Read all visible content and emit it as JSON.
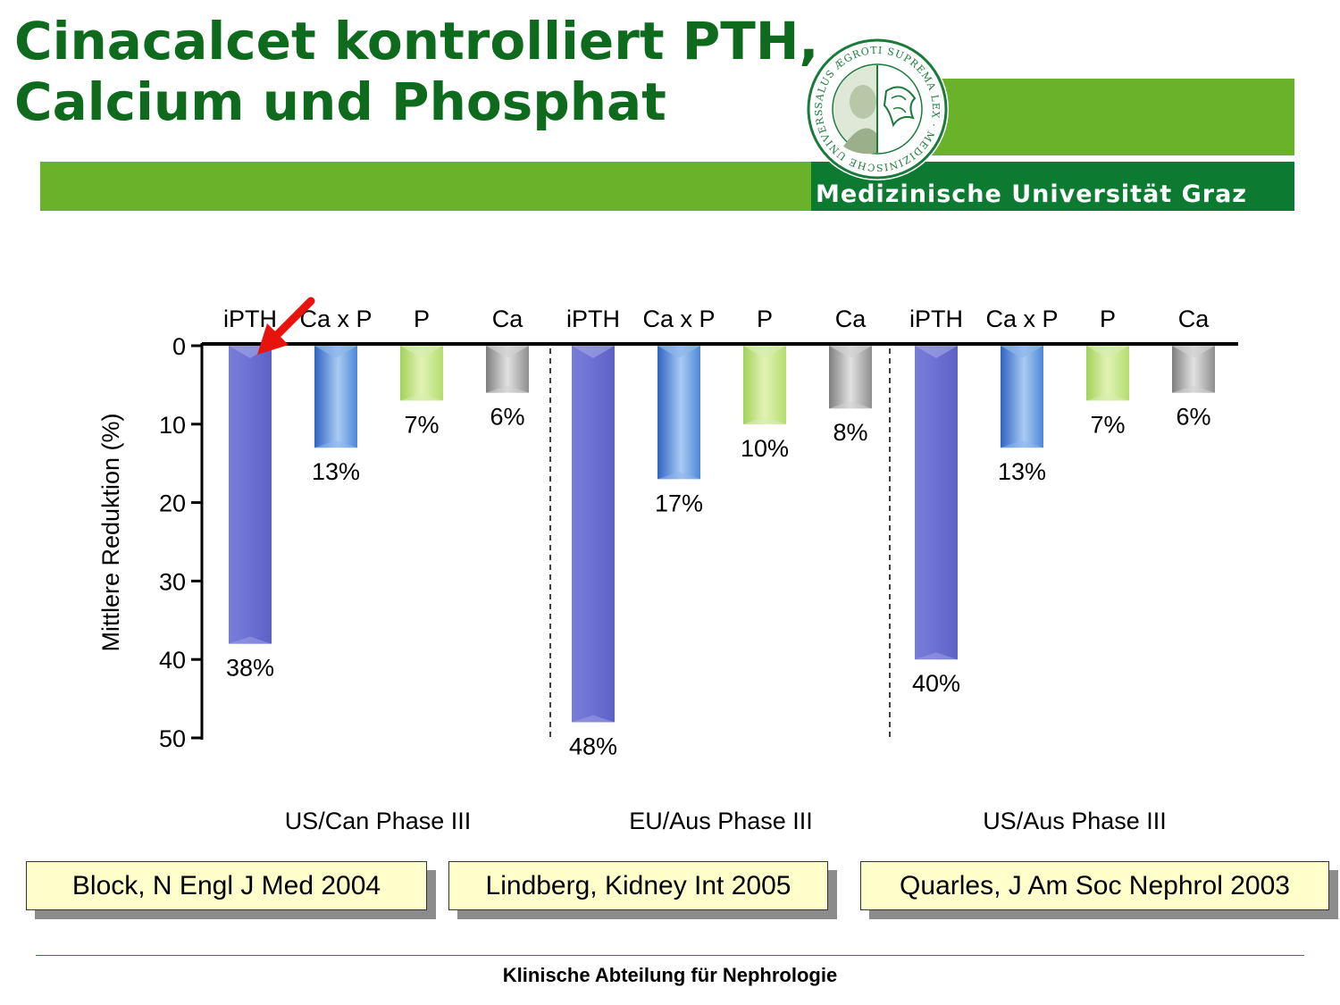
{
  "header": {
    "title_line1": "Cinacalcet kontrolliert PTH,",
    "title_line2": "Calcium und Phosphat",
    "university": "Medizinische Universität Graz",
    "seal_text": "SALUS ÆGROTI SUPREMA LEX · MEDIZINISCHE UNIVERSITÄT GRAZ",
    "title_color": "#0e6b1d",
    "band_color": "#6ab22a",
    "band_dark_color": "#0d7a32"
  },
  "chart_data": {
    "type": "bar",
    "orientation": "vertical, bars hang downward from 0",
    "ylabel": "Mittlere Reduktion (%)",
    "ylim": [
      0,
      50
    ],
    "yticks": [
      0,
      10,
      20,
      30,
      40,
      50
    ],
    "groups": [
      {
        "name": "US/Can Phase III",
        "categories": [
          "iPTH",
          "Ca x P",
          "P",
          "Ca"
        ],
        "values": [
          38,
          13,
          7,
          6
        ],
        "labels": [
          "38%",
          "13%",
          "7%",
          "6%"
        ]
      },
      {
        "name": "EU/Aus Phase III",
        "categories": [
          "iPTH",
          "Ca x P",
          "P",
          "Ca"
        ],
        "values": [
          48,
          17,
          10,
          8
        ],
        "labels": [
          "48%",
          "17%",
          "10%",
          "8%"
        ]
      },
      {
        "name": "US/Aus Phase III",
        "categories": [
          "iPTH",
          "Ca x P",
          "P",
          "Ca"
        ],
        "values": [
          40,
          13,
          7,
          6
        ],
        "labels": [
          "40%",
          "13%",
          "7%",
          "6%"
        ]
      }
    ],
    "colors": {
      "iPTH": "#6c70d2",
      "Ca x P": "#3d7ad2",
      "P": "#b4dc6e",
      "Ca": "#9a9a9a"
    },
    "annotation": "red arrow pointing to first iPTH bar"
  },
  "references": [
    "Block, N Engl J Med 2004",
    "Lindberg, Kidney Int 2005",
    "Quarles, J Am Soc Nephrol 2003"
  ],
  "footer": "Klinische Abteilung für Nephrologie"
}
